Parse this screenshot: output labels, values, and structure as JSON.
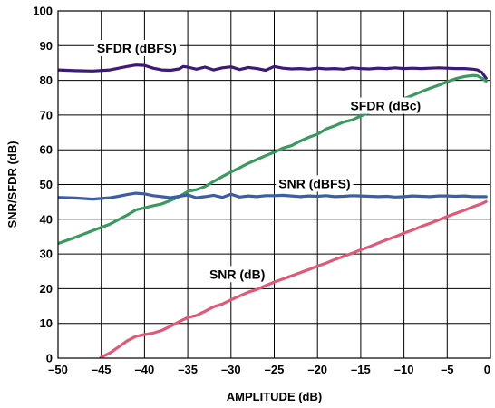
{
  "chart_data": {
    "type": "line",
    "xlabel": "AMPLITUDE (dB)",
    "ylabel": "SNR/SFDR (dB)",
    "xlim": [
      -50,
      0
    ],
    "ylim": [
      0,
      100
    ],
    "x_ticks": [
      -50,
      -45,
      -40,
      -35,
      -30,
      -25,
      -20,
      -15,
      -10,
      -5,
      0
    ],
    "x_tick_labels": [
      "–50",
      "–45",
      "–40",
      "–35",
      "–30",
      "–25",
      "–20",
      "–15",
      "–10",
      "–5",
      "0"
    ],
    "y_ticks": [
      0,
      10,
      20,
      30,
      40,
      50,
      60,
      70,
      80,
      90,
      100
    ],
    "y_tick_labels": [
      "0",
      "10",
      "20",
      "30",
      "40",
      "50",
      "60",
      "70",
      "80",
      "90",
      "100"
    ],
    "grid": true,
    "series": [
      {
        "name": "SFDR (dBFS)",
        "color": "#3d1a78",
        "x": [
          -50,
          -48,
          -46,
          -44,
          -43,
          -42,
          -41,
          -40,
          -39,
          -38,
          -37,
          -36,
          -35.5,
          -35,
          -34,
          -33,
          -32,
          -31,
          -30,
          -29,
          -28,
          -27,
          -26,
          -25,
          -24,
          -23,
          -22,
          -21,
          -20,
          -19,
          -18,
          -17,
          -16,
          -15,
          -14,
          -13,
          -12,
          -11,
          -10,
          -9,
          -8,
          -7,
          -6,
          -5,
          -4,
          -3,
          -2,
          -1.5,
          -1,
          -0.5
        ],
        "y": [
          83,
          82.8,
          82.7,
          83,
          83.5,
          84,
          84.4,
          84.3,
          83.5,
          83,
          82.9,
          83.3,
          84,
          83.8,
          83.2,
          83.8,
          83,
          83.6,
          83.9,
          83.1,
          83.7,
          83.4,
          82.9,
          84,
          83.5,
          83.3,
          83.4,
          83.2,
          83.5,
          83.3,
          83.4,
          83.2,
          83.6,
          83.4,
          83.3,
          83.5,
          83.4,
          83.6,
          83.4,
          83.5,
          83.4,
          83.5,
          83.6,
          83.5,
          83.4,
          83.4,
          83.2,
          83,
          82.3,
          80.6
        ]
      },
      {
        "name": "SFDR (dBc)",
        "color": "#3a9a60",
        "x": [
          -50,
          -48,
          -46,
          -44,
          -42,
          -41,
          -40,
          -39,
          -38,
          -37,
          -36,
          -35,
          -34,
          -33,
          -32,
          -31,
          -30,
          -29,
          -28,
          -27,
          -26,
          -25,
          -24,
          -23,
          -22,
          -21,
          -20,
          -19,
          -18,
          -17,
          -16,
          -15,
          -14,
          -13,
          -12,
          -11,
          -10,
          -9,
          -8,
          -7,
          -6,
          -5,
          -4,
          -3,
          -2,
          -1.5,
          -1,
          -0.5
        ],
        "y": [
          33,
          34.8,
          36.7,
          38.6,
          41.2,
          42.7,
          43.3,
          43.9,
          44.4,
          45.4,
          46.5,
          48,
          48.5,
          49.4,
          50.9,
          52.3,
          53.6,
          54.8,
          56.1,
          57.2,
          58.3,
          59.3,
          60.5,
          61.2,
          62.5,
          63.6,
          64.5,
          66,
          66.9,
          68,
          68.6,
          69.7,
          70.7,
          71.6,
          72.7,
          73.7,
          74.7,
          75.7,
          76.7,
          77.7,
          78.6,
          79.6,
          80.5,
          81.1,
          81.4,
          81.3,
          80.6,
          79.8
        ]
      },
      {
        "name": "SNR (dBFS)",
        "color": "#3b5ea6",
        "x": [
          -50,
          -48,
          -46,
          -44,
          -43,
          -42,
          -41,
          -40,
          -39,
          -38,
          -37,
          -36,
          -35,
          -34,
          -33,
          -32,
          -31,
          -30,
          -29,
          -28,
          -27,
          -26,
          -25,
          -24,
          -23,
          -22,
          -21,
          -20,
          -19,
          -18,
          -17,
          -16,
          -15,
          -14,
          -13,
          -12,
          -11,
          -10,
          -9,
          -8,
          -7,
          -6,
          -5,
          -4,
          -3,
          -2,
          -1,
          -0.5
        ],
        "y": [
          46.3,
          46.1,
          45.8,
          46.2,
          46.6,
          47.1,
          47.5,
          47.3,
          46.8,
          46.5,
          46.2,
          46.6,
          47,
          46.2,
          46.5,
          46.9,
          46.3,
          47.2,
          46.4,
          46.7,
          46.5,
          46.8,
          46.8,
          46.9,
          46.7,
          46.5,
          46.7,
          46.6,
          46.8,
          46.5,
          46.6,
          46.8,
          46.7,
          46.6,
          46.5,
          46.6,
          46.4,
          46.5,
          46.7,
          46.6,
          46.5,
          46.7,
          46.7,
          46.6,
          46.7,
          46.5,
          46.5,
          46.5
        ]
      },
      {
        "name": "SNR (dB)",
        "color": "#e05a78",
        "x": [
          -45.3,
          -45,
          -44,
          -43,
          -42,
          -41,
          -40,
          -39,
          -38,
          -37,
          -36,
          -35,
          -34,
          -33,
          -32,
          -31,
          -30,
          -29,
          -28,
          -27,
          -26,
          -25,
          -24,
          -23,
          -22,
          -21,
          -20,
          -19,
          -18,
          -17,
          -16,
          -15,
          -14,
          -13,
          -12,
          -11,
          -10,
          -9,
          -8,
          -7,
          -6,
          -5,
          -4,
          -3,
          -2,
          -1,
          -0.5
        ],
        "y": [
          -0.5,
          0.3,
          1.5,
          3.2,
          5,
          6.3,
          6.8,
          7.2,
          8,
          9.2,
          10.5,
          11.7,
          12.3,
          13.5,
          14.8,
          15.6,
          16.8,
          17.9,
          19,
          19.8,
          20.9,
          21.9,
          22.8,
          23.7,
          24.6,
          25.5,
          26.5,
          27.4,
          28.4,
          29.3,
          30.2,
          31.2,
          32.1,
          33.1,
          34.1,
          35,
          36,
          36.9,
          37.9,
          38.8,
          39.8,
          40.8,
          41.7,
          42.6,
          43.6,
          44.5,
          45.1
        ]
      }
    ],
    "annotations": [
      {
        "text": "SFDR (dBFS)",
        "x": -45.5,
        "y": 89.3
      },
      {
        "text": "SFDR (dBc)",
        "x": -16.2,
        "y": 72.7
      },
      {
        "text": "SNR (dBFS)",
        "x": -24.5,
        "y": 50.3
      },
      {
        "text": "SNR (dB)",
        "x": -32.5,
        "y": 24.2
      }
    ]
  }
}
